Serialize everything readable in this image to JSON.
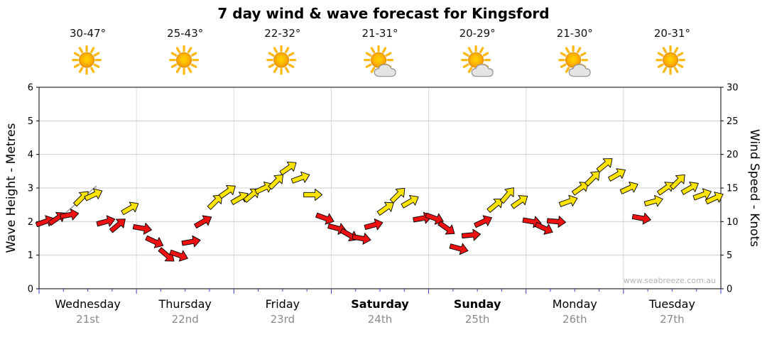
{
  "watermark": "www.seabreeze.com.au",
  "chart_data": {
    "type": "wind-arrows",
    "title": "7 day wind & wave forecast for Kingsford",
    "y_left_axis": {
      "label": "Wave Height - Metres",
      "range": [
        0,
        6
      ],
      "ticks": [
        0,
        1,
        2,
        3,
        4,
        5,
        6
      ]
    },
    "y_right_axis": {
      "label": "Wind Speed - Knots",
      "range": [
        0,
        30
      ],
      "ticks": [
        0,
        5,
        10,
        15,
        20,
        25,
        30
      ]
    },
    "x_axis": {
      "unit": "hours",
      "range": [
        0,
        168
      ],
      "interval_hours": 3,
      "grid": "day-boundaries"
    },
    "days": [
      {
        "name": "Wednesday",
        "date": "21st",
        "temp_range": "30-47°",
        "sky": "sunny"
      },
      {
        "name": "Thursday",
        "date": "22nd",
        "temp_range": "25-43°",
        "sky": "sunny"
      },
      {
        "name": "Friday",
        "date": "23rd",
        "temp_range": "22-32°",
        "sky": "sunny"
      },
      {
        "name": "Saturday",
        "date": "24th",
        "temp_range": "21-31°",
        "sky": "partly-cloudy"
      },
      {
        "name": "Sunday",
        "date": "25th",
        "temp_range": "20-29°",
        "sky": "partly-cloudy"
      },
      {
        "name": "Monday",
        "date": "26th",
        "temp_range": "21-30°",
        "sky": "partly-cloudy"
      },
      {
        "name": "Tuesday",
        "date": "27th",
        "temp_range": "20-31°",
        "sky": "sunny"
      }
    ],
    "wind_points": [
      {
        "hour": 1.5,
        "knots": 10,
        "dir_deg": -20,
        "color": "red"
      },
      {
        "hour": 4.5,
        "knots": 10.5,
        "dir_deg": -35,
        "color": "red"
      },
      {
        "hour": 7.5,
        "knots": 11,
        "dir_deg": -10,
        "color": "red"
      },
      {
        "hour": 10.5,
        "knots": 13.5,
        "dir_deg": -45,
        "color": "yellow"
      },
      {
        "hour": 13.5,
        "knots": 14,
        "dir_deg": -25,
        "color": "yellow"
      },
      {
        "hour": 16.5,
        "knots": 10,
        "dir_deg": -15,
        "color": "red"
      },
      {
        "hour": 19.5,
        "knots": 9.5,
        "dir_deg": -40,
        "color": "red"
      },
      {
        "hour": 22.5,
        "knots": 12,
        "dir_deg": -30,
        "color": "yellow"
      },
      {
        "hour": 25.5,
        "knots": 9,
        "dir_deg": 10,
        "color": "red"
      },
      {
        "hour": 28.5,
        "knots": 7,
        "dir_deg": 25,
        "color": "red"
      },
      {
        "hour": 31.5,
        "knots": 5,
        "dir_deg": 40,
        "color": "red"
      },
      {
        "hour": 34.5,
        "knots": 5,
        "dir_deg": 20,
        "color": "red"
      },
      {
        "hour": 37.5,
        "knots": 7,
        "dir_deg": -10,
        "color": "red"
      },
      {
        "hour": 40.5,
        "knots": 10,
        "dir_deg": -30,
        "color": "red"
      },
      {
        "hour": 43.5,
        "knots": 13,
        "dir_deg": -45,
        "color": "yellow"
      },
      {
        "hour": 46.5,
        "knots": 14.5,
        "dir_deg": -35,
        "color": "yellow"
      },
      {
        "hour": 49.5,
        "knots": 13.5,
        "dir_deg": -30,
        "color": "yellow"
      },
      {
        "hour": 52.5,
        "knots": 14,
        "dir_deg": -40,
        "color": "yellow"
      },
      {
        "hour": 55.5,
        "knots": 15,
        "dir_deg": -25,
        "color": "yellow"
      },
      {
        "hour": 58.5,
        "knots": 16,
        "dir_deg": -45,
        "color": "yellow"
      },
      {
        "hour": 61.5,
        "knots": 18,
        "dir_deg": -35,
        "color": "yellow"
      },
      {
        "hour": 64.5,
        "knots": 16.5,
        "dir_deg": -20,
        "color": "yellow"
      },
      {
        "hour": 67.5,
        "knots": 14,
        "dir_deg": 0,
        "color": "yellow"
      },
      {
        "hour": 70.5,
        "knots": 10.5,
        "dir_deg": 20,
        "color": "red"
      },
      {
        "hour": 73.5,
        "knots": 9,
        "dir_deg": 15,
        "color": "red"
      },
      {
        "hour": 76.5,
        "knots": 8,
        "dir_deg": 30,
        "color": "red"
      },
      {
        "hour": 79.5,
        "knots": 7.5,
        "dir_deg": 10,
        "color": "red"
      },
      {
        "hour": 82.5,
        "knots": 9.5,
        "dir_deg": -15,
        "color": "red"
      },
      {
        "hour": 85.5,
        "knots": 12,
        "dir_deg": -35,
        "color": "yellow"
      },
      {
        "hour": 88.5,
        "knots": 14,
        "dir_deg": -45,
        "color": "yellow"
      },
      {
        "hour": 91.5,
        "knots": 13,
        "dir_deg": -30,
        "color": "yellow"
      },
      {
        "hour": 94.5,
        "knots": 10.5,
        "dir_deg": -10,
        "color": "red"
      },
      {
        "hour": 97.5,
        "knots": 10.5,
        "dir_deg": 20,
        "color": "red"
      },
      {
        "hour": 100.5,
        "knots": 9,
        "dir_deg": 35,
        "color": "red"
      },
      {
        "hour": 103.5,
        "knots": 6,
        "dir_deg": 15,
        "color": "red"
      },
      {
        "hour": 106.5,
        "knots": 8,
        "dir_deg": -5,
        "color": "red"
      },
      {
        "hour": 109.5,
        "knots": 10,
        "dir_deg": -25,
        "color": "red"
      },
      {
        "hour": 112.5,
        "knots": 12.5,
        "dir_deg": -40,
        "color": "yellow"
      },
      {
        "hour": 115.5,
        "knots": 14,
        "dir_deg": -50,
        "color": "yellow"
      },
      {
        "hour": 118.5,
        "knots": 13,
        "dir_deg": -35,
        "color": "yellow"
      },
      {
        "hour": 121.5,
        "knots": 10,
        "dir_deg": 10,
        "color": "red"
      },
      {
        "hour": 124.5,
        "knots": 9,
        "dir_deg": 25,
        "color": "red"
      },
      {
        "hour": 127.5,
        "knots": 10,
        "dir_deg": 5,
        "color": "red"
      },
      {
        "hour": 130.5,
        "knots": 13,
        "dir_deg": -20,
        "color": "yellow"
      },
      {
        "hour": 133.5,
        "knots": 15,
        "dir_deg": -35,
        "color": "yellow"
      },
      {
        "hour": 136.5,
        "knots": 16.5,
        "dir_deg": -45,
        "color": "yellow"
      },
      {
        "hour": 139.5,
        "knots": 18.5,
        "dir_deg": -40,
        "color": "yellow"
      },
      {
        "hour": 142.5,
        "knots": 17,
        "dir_deg": -30,
        "color": "yellow"
      },
      {
        "hour": 145.5,
        "knots": 15,
        "dir_deg": -25,
        "color": "yellow"
      },
      {
        "hour": 148.5,
        "knots": 10.5,
        "dir_deg": 10,
        "color": "red"
      },
      {
        "hour": 151.5,
        "knots": 13,
        "dir_deg": -15,
        "color": "yellow"
      },
      {
        "hour": 154.5,
        "knots": 15,
        "dir_deg": -35,
        "color": "yellow"
      },
      {
        "hour": 157.5,
        "knots": 16,
        "dir_deg": -45,
        "color": "yellow"
      },
      {
        "hour": 160.5,
        "knots": 15,
        "dir_deg": -30,
        "color": "yellow"
      },
      {
        "hour": 163.5,
        "knots": 14,
        "dir_deg": -20,
        "color": "yellow"
      },
      {
        "hour": 166.5,
        "knots": 13.5,
        "dir_deg": -25,
        "color": "yellow"
      }
    ]
  },
  "colors": {
    "arrow_red": "#ee1111",
    "arrow_yellow": "#ffe400",
    "grid": "#cccccc",
    "axis": "#000000",
    "blue_tick": "#3c3ccd",
    "date_text": "#8a8a8a",
    "watermark_text": "#b4b4b4"
  }
}
